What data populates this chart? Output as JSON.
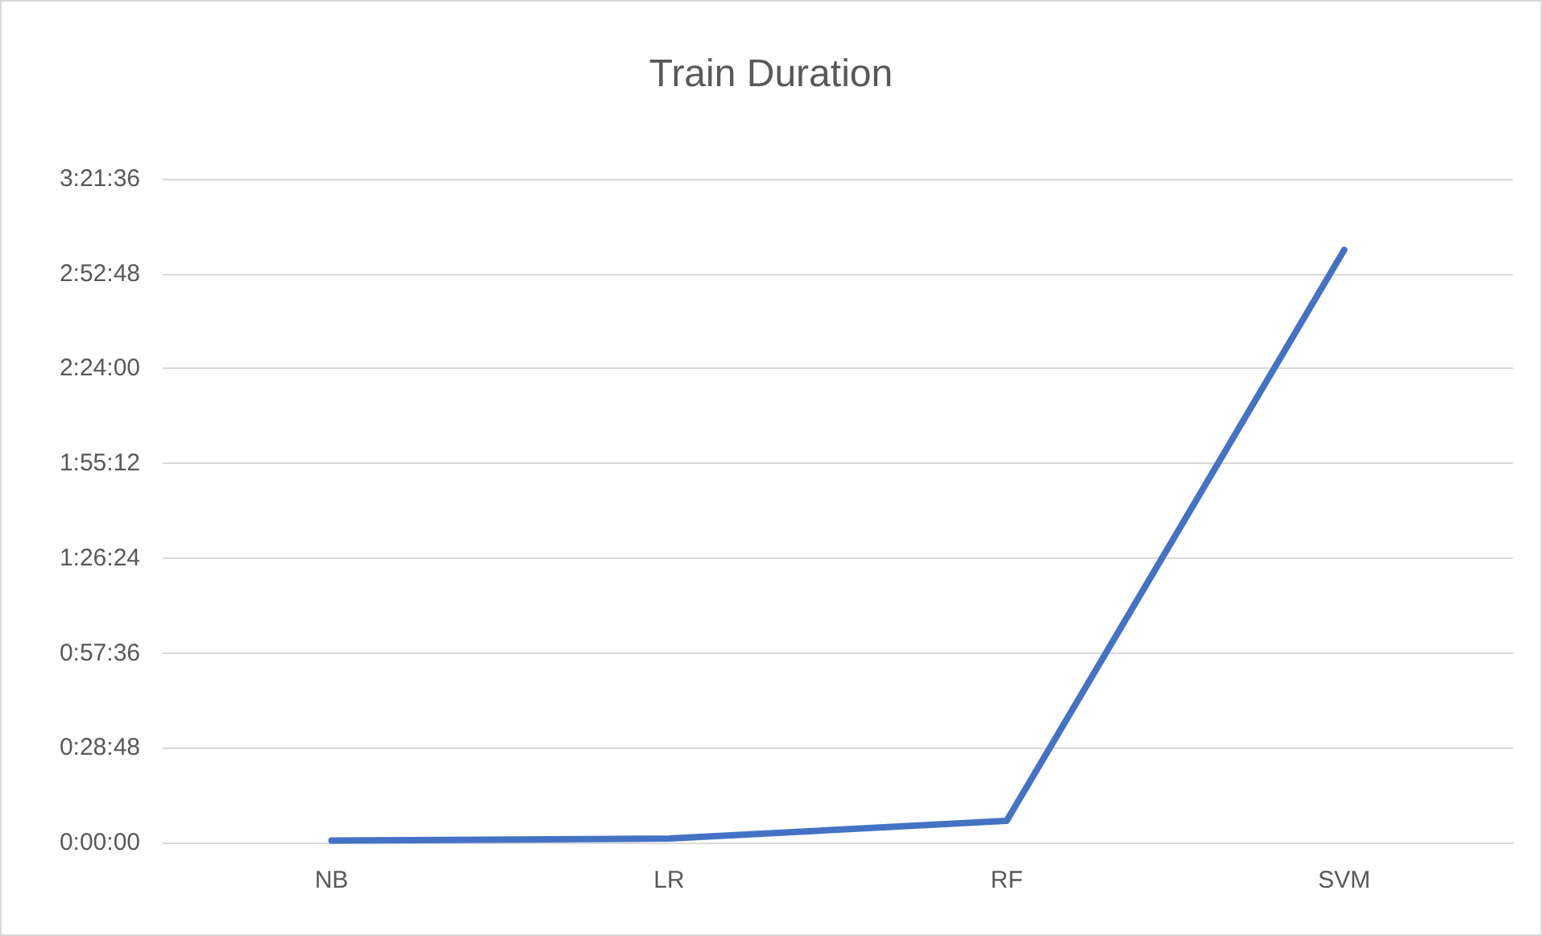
{
  "chart_data": {
    "type": "line",
    "title": "Train Duration",
    "categories": [
      "NB",
      "LR",
      "RF",
      "SVM"
    ],
    "series": [
      {
        "color": "#4472c4",
        "values": [
          0.01,
          0.02,
          0.11,
          3.0
        ]
      }
    ],
    "ylim": [
      0,
      3.36
    ],
    "yticks": [
      {
        "value": 0,
        "label": "0:00:00"
      },
      {
        "value": 0.48,
        "label": "0:28:48"
      },
      {
        "value": 0.96,
        "label": "0:57:36"
      },
      {
        "value": 1.44,
        "label": "1:26:24"
      },
      {
        "value": 1.92,
        "label": "1:55:12"
      },
      {
        "value": 2.4,
        "label": "2:24:00"
      },
      {
        "value": 2.88,
        "label": "2:52:48"
      },
      {
        "value": 3.36,
        "label": "3:21:36"
      }
    ],
    "grid": "y",
    "marker": "none",
    "line_style": "solid"
  }
}
